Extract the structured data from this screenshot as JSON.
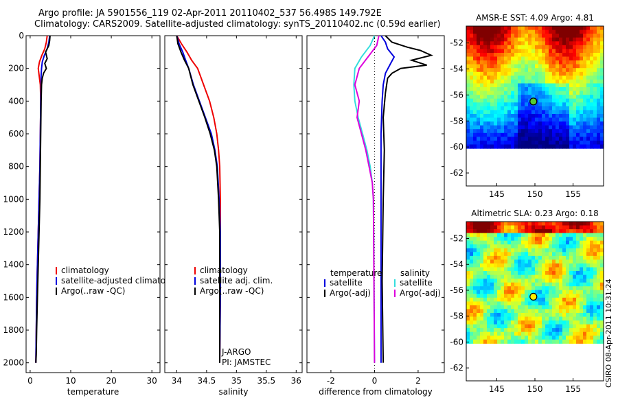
{
  "header": {
    "line1": "Argo profile: JA 5901556_119 02-Apr-2011 20110402_537 56.498S 149.792E",
    "line2": "Climatology: CARS2009. Satellite-adjusted climatology: synTS_20110402.nc (0.59d earlier)"
  },
  "stamp": "CSIRO 08-Apr-2011 10:31:24",
  "colors": {
    "clim": "#ee0000",
    "sat": "#0000dd",
    "argo": "#000000",
    "sal_sat": "#33dddd",
    "sal_argo": "#dd00dd"
  },
  "chart_data": [
    {
      "type": "line",
      "xlabel": "temperature",
      "xlim": [
        -1,
        32
      ],
      "ylim": [
        2060,
        0
      ],
      "xticks": [
        0,
        10,
        20,
        30
      ],
      "yticks": [
        0,
        200,
        400,
        600,
        800,
        1000,
        1200,
        1400,
        1600,
        1800,
        2000
      ],
      "legend": [
        "climatology",
        "satellite-adjusted climatology",
        "Argo(..raw -QC)"
      ],
      "series": [
        {
          "name": "climatology",
          "color": "clim",
          "x": [
            4.2,
            4.0,
            3.6,
            2.9,
            2.3,
            2.0,
            2.2,
            2.5,
            2.6,
            2.5,
            2.4,
            2.2,
            2.0,
            1.8,
            1.6,
            1.5,
            1.4
          ],
          "y": [
            0,
            40,
            80,
            120,
            160,
            200,
            240,
            300,
            400,
            600,
            800,
            1000,
            1200,
            1400,
            1600,
            1800,
            2000
          ]
        },
        {
          "name": "satellite-adjusted climatology",
          "color": "sat",
          "x": [
            4.8,
            4.6,
            4.2,
            3.5,
            3.0,
            2.8,
            2.7,
            2.7,
            2.6,
            2.5,
            2.4,
            2.2,
            2.0,
            1.8,
            1.6,
            1.5,
            1.4
          ],
          "y": [
            0,
            40,
            80,
            120,
            160,
            200,
            240,
            300,
            400,
            600,
            800,
            1000,
            1200,
            1400,
            1600,
            1800,
            2000
          ]
        },
        {
          "name": "Argo(..raw -QC)",
          "color": "argo",
          "x": [
            4.9,
            4.8,
            4.6,
            3.8,
            4.2,
            3.6,
            4.0,
            3.3,
            3.0,
            2.8,
            2.7,
            2.6,
            2.5,
            2.4,
            2.2,
            2.0,
            1.8,
            1.6,
            1.5,
            1.4
          ],
          "y": [
            0,
            30,
            60,
            100,
            140,
            170,
            200,
            230,
            260,
            300,
            400,
            600,
            800,
            1000,
            1200,
            1400,
            1600,
            1800,
            1950,
            2000
          ]
        }
      ]
    },
    {
      "type": "line",
      "xlabel": "salinity",
      "xlim": [
        33.8,
        36.1
      ],
      "ylim": [
        2060,
        0
      ],
      "xticks": [
        34,
        34.5,
        35,
        35.5,
        36
      ],
      "yticks": [
        0,
        200,
        400,
        600,
        800,
        1000,
        1200,
        1400,
        1600,
        1800,
        2000
      ],
      "legend": [
        "climatology",
        "satellite adj. clim.",
        "Argo(..raw -QC)"
      ],
      "notes": [
        "J-ARGO",
        "PI: JAMSTEC"
      ],
      "series": [
        {
          "name": "climatology",
          "color": "clim",
          "x": [
            34.0,
            34.08,
            34.17,
            34.25,
            34.35,
            34.45,
            34.55,
            34.62,
            34.67,
            34.7,
            34.72,
            34.73,
            34.73,
            34.73,
            34.73,
            34.72
          ],
          "y": [
            0,
            50,
            100,
            150,
            200,
            300,
            400,
            500,
            600,
            700,
            800,
            1000,
            1200,
            1400,
            1600,
            2000
          ]
        },
        {
          "name": "satellite adj. clim.",
          "color": "sat",
          "x": [
            34.0,
            34.04,
            34.1,
            34.15,
            34.2,
            34.28,
            34.38,
            34.48,
            34.58,
            34.64,
            34.68,
            34.71,
            34.73,
            34.73,
            34.73,
            34.72
          ],
          "y": [
            0,
            50,
            100,
            150,
            200,
            300,
            400,
            500,
            600,
            700,
            800,
            1000,
            1200,
            1400,
            1600,
            2000
          ]
        },
        {
          "name": "Argo(..raw -QC)",
          "color": "argo",
          "x": [
            34.0,
            34.02,
            34.07,
            34.13,
            34.2,
            34.27,
            34.37,
            34.47,
            34.56,
            34.63,
            34.67,
            34.7,
            34.72,
            34.72,
            34.72,
            34.72
          ],
          "y": [
            0,
            50,
            100,
            150,
            200,
            300,
            400,
            500,
            600,
            700,
            800,
            1000,
            1200,
            1400,
            1600,
            2000
          ]
        }
      ]
    },
    {
      "type": "line",
      "xlabel": "difference from climatology",
      "xlim": [
        -3.1,
        3.2
      ],
      "ylim": [
        2060,
        0
      ],
      "xticks": [
        -2,
        0,
        2
      ],
      "yticks": [
        0,
        200,
        400,
        600,
        800,
        1000,
        1200,
        1400,
        1600,
        1800,
        2000
      ],
      "legend_titles": [
        "temperature",
        "salinity"
      ],
      "legend": [
        "satellite",
        "Argo(-adj)",
        "satellite",
        "Argo(-adj)"
      ],
      "series": [
        {
          "name": "temperature satellite",
          "color": "sat",
          "x": [
            0.3,
            0.5,
            0.6,
            0.9,
            0.7,
            0.5,
            0.4,
            0.35,
            0.3,
            0.3,
            0.3,
            0.3
          ],
          "y": [
            0,
            40,
            80,
            130,
            180,
            230,
            300,
            400,
            600,
            1000,
            1500,
            2000
          ]
        },
        {
          "name": "temperature Argo(-adj)",
          "color": "argo",
          "x": [
            0.5,
            0.8,
            1.5,
            2.1,
            2.6,
            1.7,
            2.4,
            1.2,
            0.8,
            0.6,
            0.5,
            0.4,
            0.45,
            0.4,
            0.35,
            0.4
          ],
          "y": [
            0,
            40,
            70,
            90,
            120,
            150,
            180,
            200,
            230,
            260,
            350,
            500,
            700,
            1000,
            1500,
            2000
          ]
        },
        {
          "name": "salinity satellite",
          "color": "sal_sat",
          "x": [
            0.0,
            -0.2,
            -0.6,
            -0.9,
            -0.95,
            -0.9,
            -0.75,
            -0.55,
            -0.35,
            -0.2,
            -0.1,
            -0.05,
            0.0
          ],
          "y": [
            0,
            60,
            130,
            200,
            300,
            400,
            500,
            600,
            700,
            800,
            900,
            1000,
            2000
          ]
        },
        {
          "name": "salinity Argo(-adj)",
          "color": "sal_argo",
          "x": [
            0.2,
            0.1,
            -0.3,
            -0.7,
            -0.9,
            -0.7,
            -0.8,
            -0.6,
            -0.4,
            -0.25,
            -0.1,
            -0.05,
            0.0
          ],
          "y": [
            0,
            60,
            130,
            200,
            300,
            400,
            500,
            600,
            700,
            800,
            900,
            1000,
            2000
          ]
        }
      ]
    },
    {
      "type": "heatmap",
      "title": "AMSR-E SST: 4.09 Argo: 4.81",
      "xlim": [
        141,
        159
      ],
      "ylim": [
        -63,
        -50.7
      ],
      "xticks": [
        145,
        150,
        155
      ],
      "yticks": [
        -52,
        -54,
        -56,
        -58,
        -60,
        -62
      ],
      "marker": {
        "lon": 149.8,
        "lat": -56.5
      }
    },
    {
      "type": "heatmap",
      "title": "Altimetric SLA: 0.23 Argo: 0.18",
      "xlim": [
        141,
        159
      ],
      "ylim": [
        -63,
        -50.7
      ],
      "xticks": [
        145,
        150,
        155
      ],
      "yticks": [
        -52,
        -54,
        -56,
        -58,
        -60,
        -62
      ],
      "marker": {
        "lon": 149.8,
        "lat": -56.5
      }
    }
  ]
}
